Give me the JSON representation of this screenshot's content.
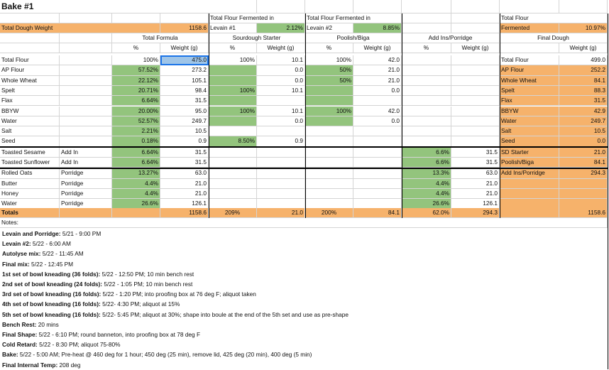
{
  "title": "Bake #1",
  "header": {
    "total_dough_weight_label": "Total Dough Weight",
    "total_dough_weight_value": "1158.6",
    "levain1_top": "Total Flour Fermented in",
    "levain1_label": "Levain #1",
    "levain1_value": "2.12%",
    "levain2_top": "Total Flour Fermented in",
    "levain2_label": "Levain #2",
    "levain2_value": "8.85%",
    "fermented_top": "Total Flour",
    "fermented_label": "Fermented",
    "fermented_value": "10.97%"
  },
  "sections": {
    "total_formula": "Total Formula",
    "sourdough": "Sourdough Starter",
    "poolish": "Poolish/Biga",
    "addins": "Add Ins/Porridge",
    "final_dough": "Final Dough"
  },
  "subheaders": {
    "pct": "%",
    "weight": "Weight (g)"
  },
  "rows": [
    {
      "name": "Total Flour",
      "type": "",
      "tf_pct": "100%",
      "tf_w": "475.0",
      "ss_pct": "100%",
      "ss_w": "10.1",
      "pb_pct": "100%",
      "pb_w": "42.0",
      "ai_pct": "",
      "ai_w": "",
      "fd_name": "Total Flour",
      "fd_w": "499.0"
    },
    {
      "name": "AP Flour",
      "type": "",
      "tf_pct": "57.52%",
      "tf_w": "273.2",
      "ss_pct": "",
      "ss_w": "0.0",
      "pb_pct": "50%",
      "pb_w": "21.0",
      "ai_pct": "",
      "ai_w": "",
      "fd_name": "AP Flour",
      "fd_w": "252.2"
    },
    {
      "name": "Whole Wheat",
      "type": "",
      "tf_pct": "22.12%",
      "tf_w": "105.1",
      "ss_pct": "",
      "ss_w": "0.0",
      "pb_pct": "50%",
      "pb_w": "21.0",
      "ai_pct": "",
      "ai_w": "",
      "fd_name": "Whole Wheat",
      "fd_w": "84.1"
    },
    {
      "name": "Spelt",
      "type": "",
      "tf_pct": "20.71%",
      "tf_w": "98.4",
      "ss_pct": "100%",
      "ss_w": "10.1",
      "pb_pct": "",
      "pb_w": "0.0",
      "ai_pct": "",
      "ai_w": "",
      "fd_name": "Spelt",
      "fd_w": "88.3"
    },
    {
      "name": "Flax",
      "type": "",
      "tf_pct": "6.64%",
      "tf_w": "31.5",
      "ss_pct": "",
      "ss_w": "",
      "pb_pct": "",
      "pb_w": "",
      "ai_pct": "",
      "ai_w": "",
      "fd_name": "Flax",
      "fd_w": "31.5"
    },
    {
      "name": "BBYW",
      "type": "",
      "tf_pct": "20.00%",
      "tf_w": "95.0",
      "ss_pct": "100%",
      "ss_w": "10.1",
      "pb_pct": "100%",
      "pb_w": "42.0",
      "ai_pct": "",
      "ai_w": "",
      "fd_name": "BBYW",
      "fd_w": "42.9"
    },
    {
      "name": "Water",
      "type": "",
      "tf_pct": "52.57%",
      "tf_w": "249.7",
      "ss_pct": "",
      "ss_w": "0.0",
      "pb_pct": "",
      "pb_w": "0.0",
      "ai_pct": "",
      "ai_w": "",
      "fd_name": "Water",
      "fd_w": "249.7"
    },
    {
      "name": "Salt",
      "type": "",
      "tf_pct": "2.21%",
      "tf_w": "10.5",
      "ss_pct": "",
      "ss_w": "",
      "pb_pct": "",
      "pb_w": "",
      "ai_pct": "",
      "ai_w": "",
      "fd_name": "Salt",
      "fd_w": "10.5"
    },
    {
      "name": "Seed",
      "type": "",
      "tf_pct": "0.18%",
      "tf_w": "0.9",
      "ss_pct": "8.50%",
      "ss_w": "0.9",
      "pb_pct": "",
      "pb_w": "",
      "ai_pct": "",
      "ai_w": "",
      "fd_name": "Seed",
      "fd_w": "0.0"
    },
    {
      "name": "Toasted Sesame",
      "type": "Add In",
      "tf_pct": "6.64%",
      "tf_w": "31.5",
      "ss_pct": "",
      "ss_w": "",
      "pb_pct": "",
      "pb_w": "",
      "ai_pct": "6.6%",
      "ai_w": "31.5",
      "fd_name": "SD Starter",
      "fd_w": "21.0"
    },
    {
      "name": "Toasted Sunflower",
      "type": "Add In",
      "tf_pct": "6.64%",
      "tf_w": "31.5",
      "ss_pct": "",
      "ss_w": "",
      "pb_pct": "",
      "pb_w": "",
      "ai_pct": "6.6%",
      "ai_w": "31.5",
      "fd_name": "Poolish/Biga",
      "fd_w": "84.1"
    },
    {
      "name": "Rolled Oats",
      "type": "Porridge",
      "tf_pct": "13.27%",
      "tf_w": "63.0",
      "ss_pct": "",
      "ss_w": "",
      "pb_pct": "",
      "pb_w": "",
      "ai_pct": "13.3%",
      "ai_w": "63.0",
      "fd_name": "Add Ins/Porridge",
      "fd_w": "294.3"
    },
    {
      "name": "Butter",
      "type": "Porridge",
      "tf_pct": "4.4%",
      "tf_w": "21.0",
      "ss_pct": "",
      "ss_w": "",
      "pb_pct": "",
      "pb_w": "",
      "ai_pct": "4.4%",
      "ai_w": "21.0",
      "fd_name": "",
      "fd_w": ""
    },
    {
      "name": "Honey",
      "type": "Porridge",
      "tf_pct": "4.4%",
      "tf_w": "21.0",
      "ss_pct": "",
      "ss_w": "",
      "pb_pct": "",
      "pb_w": "",
      "ai_pct": "4.4%",
      "ai_w": "21.0",
      "fd_name": "",
      "fd_w": ""
    },
    {
      "name": "Water",
      "type": "Porridge",
      "tf_pct": "26.6%",
      "tf_w": "126.1",
      "ss_pct": "",
      "ss_w": "",
      "pb_pct": "",
      "pb_w": "",
      "ai_pct": "26.6%",
      "ai_w": "126.1",
      "fd_name": "",
      "fd_w": ""
    }
  ],
  "totals": {
    "label": "Totals",
    "tf_w": "1158.6",
    "ss_pct": "209%",
    "ss_w": "21.0",
    "pb_pct": "200%",
    "pb_w": "84.1",
    "ai_pct": "62.0%",
    "ai_w": "294.3",
    "fd_w": "1158.6"
  },
  "notes_label": "Notes:",
  "notes": [
    {
      "k": "Levain and Porridge:",
      "v": " 5/21 - 9:00 PM"
    },
    {
      "k": "Levain #2:",
      "v": " 5/22 - 6:00 AM"
    },
    {
      "k": "Autolyse mix:",
      "v": " 5/22 - 11:45 AM"
    },
    {
      "k": "Final mix:",
      "v": " 5/22 - 12:45 PM"
    },
    {
      "k": "1st set of bowl kneading (36 folds):",
      "v": " 5/22 - 12:50 PM; 10 min bench rest"
    },
    {
      "k": "2nd set of bowl kneading (24 folds):",
      "v": " 5/22 - 1:05 PM; 10 min bench rest"
    },
    {
      "k": "3rd set of bowl kneading (16 folds):",
      "v": " 5/22 - 1:20 PM; into proofing box at 76 deg F; aliquot taken"
    },
    {
      "k": "4th set of bowl kneading (16 folds):",
      "v": " 5/22- 4:30 PM; aliquot at 15%"
    },
    {
      "k": "5th set of bowl kneading (16 folds):",
      "v": " 5/22- 5:45 PM; aliquot at 30%; shape into boule at the end of the 5th set and use as pre-shape"
    },
    {
      "k": "Bench Rest:",
      "v": " 20 mins"
    },
    {
      "k": "Final Shape:",
      "v": " 5/22 - 6:10 PM; round banneton, into proofing box at 78 deg F"
    },
    {
      "k": "Cold Retard:",
      "v": " 5/22 - 8:30 PM; aliquot 75-80%"
    },
    {
      "k": "Bake:",
      "v": " 5/22 - 5:00 AM; Pre-heat @ 460 deg for 1 hour; 450 deg (25 min), remove lid, 425 deg (20 min), 400 deg (5 min)"
    },
    {
      "k": "Final Internal Temp:",
      "v": " 208 deg"
    }
  ],
  "colors": {
    "green": "#93c47d",
    "orange": "#f6b26b",
    "selected": "#9fc5e8"
  }
}
